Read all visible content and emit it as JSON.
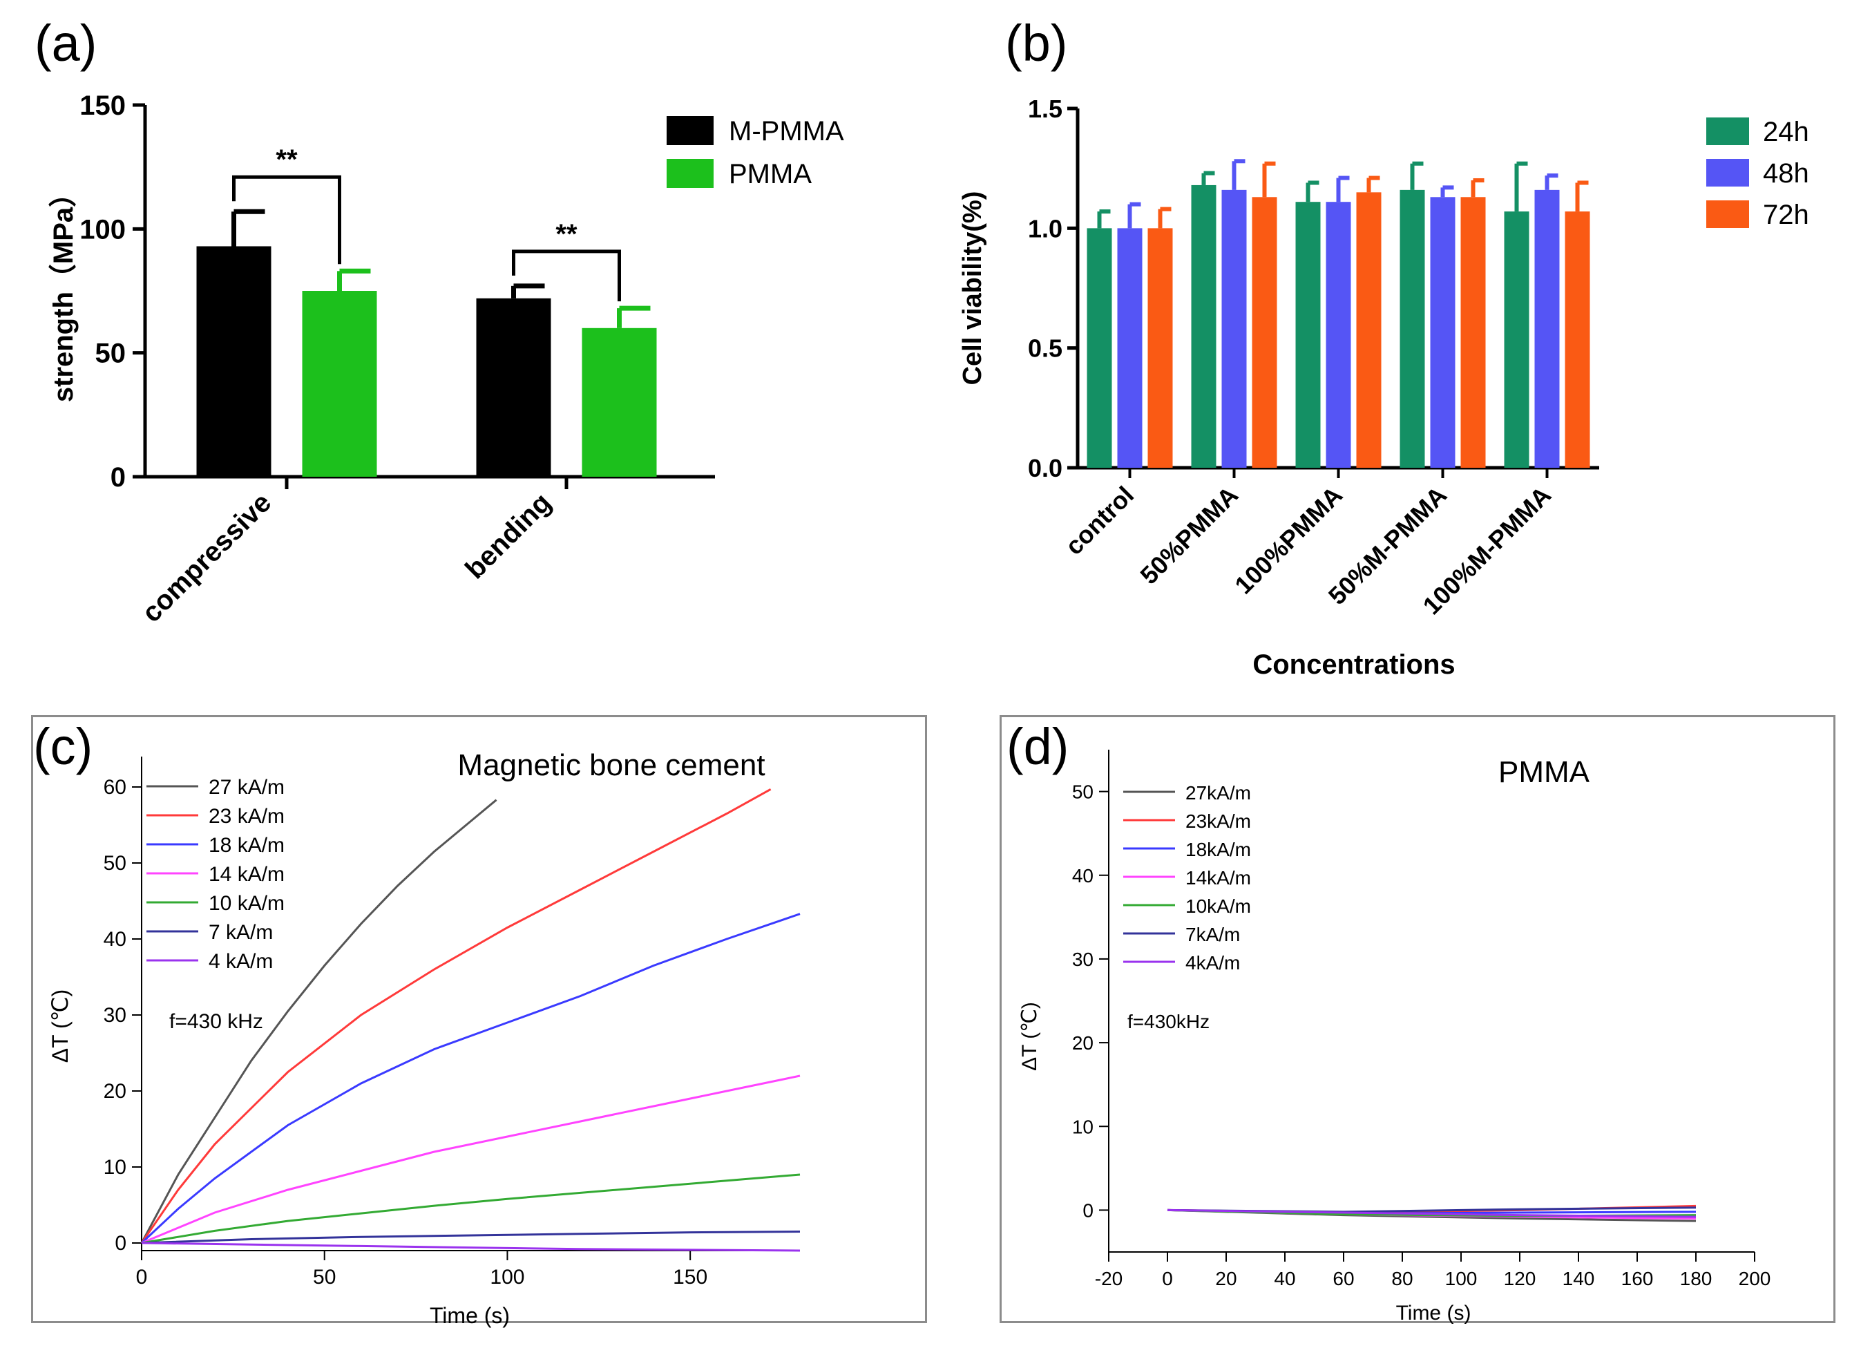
{
  "chart_data": [
    {
      "panel_label": "(a)",
      "type": "bar",
      "title": "",
      "xlabel": "",
      "ylabel": "strength（MPa）",
      "ylim": [
        0,
        150
      ],
      "yticks": [
        "0",
        "50",
        "100",
        "150"
      ],
      "categories": [
        "compressive",
        "bending"
      ],
      "series": [
        {
          "name": "M-PMMA",
          "color": "#000000",
          "values": [
            93,
            72
          ],
          "errors": [
            14,
            5
          ]
        },
        {
          "name": "PMMA",
          "color": "#1cc01c",
          "values": [
            75,
            60
          ],
          "errors": [
            8,
            8
          ]
        }
      ],
      "significance": [
        "**",
        "**"
      ],
      "legend_position": "top-right"
    },
    {
      "panel_label": "(b)",
      "type": "bar",
      "title": "",
      "xlabel": "Concentrations",
      "ylabel": "Cell viability(%)",
      "ylim": [
        0,
        1.5
      ],
      "yticks": [
        "0.0",
        "0.5",
        "1.0",
        "1.5"
      ],
      "categories": [
        "control",
        "50%PMMA",
        "100%PMMA",
        "50%M-PMMA",
        "100%M-PMMA"
      ],
      "series": [
        {
          "name": "24h",
          "color": "#149064",
          "values": [
            1.0,
            1.18,
            1.11,
            1.16,
            1.07
          ],
          "errors": [
            0.07,
            0.05,
            0.08,
            0.11,
            0.2
          ]
        },
        {
          "name": "48h",
          "color": "#5555f5",
          "values": [
            1.0,
            1.16,
            1.11,
            1.13,
            1.16
          ],
          "errors": [
            0.1,
            0.12,
            0.1,
            0.04,
            0.06
          ]
        },
        {
          "name": "72h",
          "color": "#fa5a14",
          "values": [
            1.0,
            1.13,
            1.15,
            1.13,
            1.07
          ],
          "errors": [
            0.08,
            0.14,
            0.06,
            0.07,
            0.12
          ]
        }
      ],
      "legend_position": "top-right"
    },
    {
      "panel_label": "(c)",
      "type": "line",
      "title": "Magnetic bone cement",
      "xlabel": "Time (s)",
      "ylabel": "ΔT (℃)",
      "xlim": [
        0,
        180
      ],
      "ylim": [
        -1,
        64
      ],
      "xticks": [
        "0",
        "50",
        "100",
        "150"
      ],
      "yticks": [
        "0",
        "10",
        "20",
        "30",
        "40",
        "50",
        "60"
      ],
      "annotation": "f=430 kHz",
      "series": [
        {
          "name": "27 kA/m",
          "color": "#555555",
          "x": [
            0,
            10,
            20,
            30,
            40,
            50,
            60,
            70,
            80,
            90,
            97
          ],
          "y": [
            0,
            9,
            16.5,
            24,
            30.5,
            36.5,
            42,
            47,
            51.5,
            55.5,
            58.3
          ]
        },
        {
          "name": "23 kA/m",
          "color": "#ff3a3a",
          "x": [
            0,
            10,
            20,
            40,
            60,
            80,
            100,
            120,
            140,
            160,
            172
          ],
          "y": [
            0,
            7,
            13,
            22.5,
            30,
            36,
            41.5,
            46.5,
            51.5,
            56.5,
            59.7
          ]
        },
        {
          "name": "18 kA/m",
          "color": "#3a3aff",
          "x": [
            0,
            10,
            20,
            40,
            60,
            80,
            100,
            120,
            140,
            160,
            180
          ],
          "y": [
            0,
            4.5,
            8.5,
            15.5,
            21,
            25.5,
            29,
            32.5,
            36.5,
            40,
            43.3
          ]
        },
        {
          "name": "14 kA/m",
          "color": "#ff44ff",
          "x": [
            0,
            20,
            40,
            60,
            80,
            100,
            120,
            140,
            160,
            180
          ],
          "y": [
            0,
            4,
            7,
            9.5,
            12,
            14,
            16,
            18,
            20,
            22
          ]
        },
        {
          "name": "10 kA/m",
          "color": "#33aa33",
          "x": [
            0,
            20,
            40,
            60,
            80,
            100,
            120,
            140,
            160,
            180
          ],
          "y": [
            0,
            1.6,
            2.9,
            3.9,
            4.9,
            5.8,
            6.6,
            7.4,
            8.2,
            9.0
          ]
        },
        {
          "name": "7 kA/m",
          "color": "#33339a",
          "x": [
            0,
            30,
            60,
            90,
            120,
            150,
            180
          ],
          "y": [
            0,
            0.5,
            0.8,
            1.0,
            1.2,
            1.4,
            1.5
          ]
        },
        {
          "name": "4 kA/m",
          "color": "#9a33ee",
          "x": [
            0,
            30,
            60,
            90,
            120,
            150,
            180
          ],
          "y": [
            0,
            -0.2,
            -0.4,
            -0.6,
            -0.8,
            -0.9,
            -1.0
          ]
        }
      ]
    },
    {
      "panel_label": "(d)",
      "type": "line",
      "title": "PMMA",
      "xlabel": "Time (s)",
      "ylabel": "ΔT (℃)",
      "xlim": [
        -20,
        200
      ],
      "ylim": [
        -5,
        55
      ],
      "xticks": [
        "-20",
        "0",
        "20",
        "40",
        "60",
        "80",
        "100",
        "120",
        "140",
        "160",
        "180",
        "200"
      ],
      "yticks": [
        "0",
        "10",
        "20",
        "30",
        "40",
        "50"
      ],
      "annotation": "f=430kHz",
      "series": [
        {
          "name": "27kA/m",
          "color": "#555555",
          "x": [
            0,
            60,
            120,
            180
          ],
          "y": [
            0,
            -0.6,
            -1.0,
            -1.3
          ]
        },
        {
          "name": "23kA/m",
          "color": "#ff3a3a",
          "x": [
            0,
            60,
            120,
            180
          ],
          "y": [
            0,
            -0.3,
            0.0,
            0.5
          ]
        },
        {
          "name": "18kA/m",
          "color": "#3a3aff",
          "x": [
            0,
            60,
            120,
            180
          ],
          "y": [
            0,
            -0.4,
            -0.3,
            -0.2
          ]
        },
        {
          "name": "14kA/m",
          "color": "#ff44ff",
          "x": [
            0,
            60,
            120,
            180
          ],
          "y": [
            0,
            -0.5,
            -0.8,
            -1.0
          ]
        },
        {
          "name": "10kA/m",
          "color": "#33aa33",
          "x": [
            0,
            60,
            120,
            180
          ],
          "y": [
            0,
            -0.5,
            -0.7,
            -0.6
          ]
        },
        {
          "name": "7kA/m",
          "color": "#33339a",
          "x": [
            0,
            60,
            120,
            180
          ],
          "y": [
            0,
            -0.2,
            0.1,
            0.3
          ]
        },
        {
          "name": "4kA/m",
          "color": "#9a33ee",
          "x": [
            0,
            60,
            120,
            180
          ],
          "y": [
            0,
            -0.3,
            -0.6,
            -0.8
          ]
        }
      ]
    }
  ]
}
